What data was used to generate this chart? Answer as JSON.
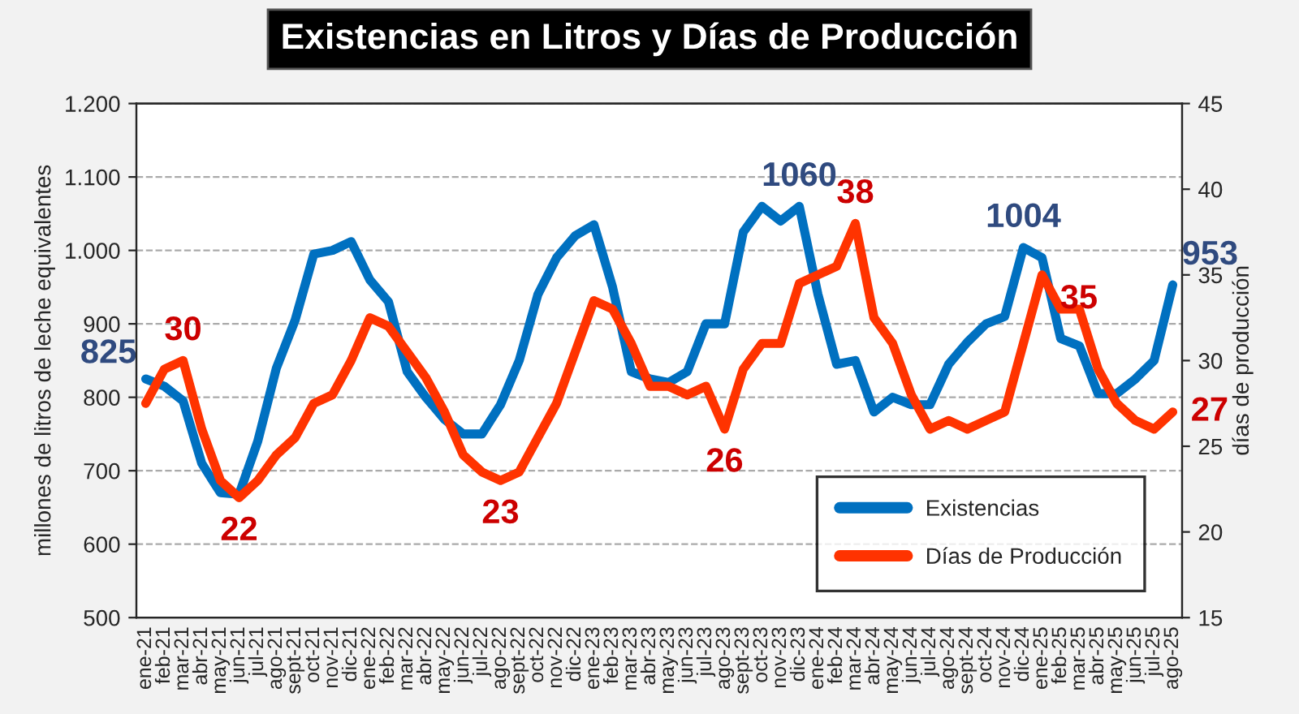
{
  "chart_data": {
    "type": "line",
    "title": "Existencias en Litros y Días de Producción",
    "ylabel": "millones de litros de leche equivalentes",
    "y2label": "días de producción",
    "categories": [
      "ene-21",
      "feb-21",
      "mar-21",
      "abr-21",
      "may-21",
      "jun-21",
      "jul-21",
      "ago-21",
      "sept-21",
      "oct-21",
      "nov-21",
      "dic-21",
      "ene-22",
      "feb-22",
      "mar-22",
      "abr-22",
      "may-22",
      "jun-22",
      "jul-22",
      "ago-22",
      "sept-22",
      "oct-22",
      "nov-22",
      "dic-22",
      "ene-23",
      "feb-23",
      "mar-23",
      "abr-23",
      "may-23",
      "jun-23",
      "jul-23",
      "ago-23",
      "sept-23",
      "oct-23",
      "nov-23",
      "dic-23",
      "ene-24",
      "feb-24",
      "mar-24",
      "abr-24",
      "may-24",
      "jun-24",
      "jul-24",
      "ago-24",
      "sept-24",
      "oct-24",
      "nov-24",
      "dic-24",
      "ene-25",
      "feb-25",
      "mar-25",
      "abr-25",
      "may-25",
      "jun-25",
      "jul-25",
      "ago-25"
    ],
    "series": [
      {
        "name": "Existencias",
        "color": "#0070c0",
        "values": [
          825,
          815,
          795,
          710,
          670,
          668,
          740,
          840,
          905,
          995,
          1000,
          1012,
          960,
          930,
          835,
          800,
          770,
          750,
          750,
          790,
          850,
          940,
          990,
          1020,
          1035,
          950,
          835,
          825,
          820,
          835,
          900,
          900,
          1025,
          1060,
          1040,
          1060,
          940,
          845,
          850,
          780,
          800,
          790,
          790,
          845,
          875,
          900,
          910,
          1004,
          990,
          880,
          870,
          805,
          805,
          825,
          850,
          953
        ],
        "value_labels": [
          "825",
          null,
          null,
          null,
          null,
          null,
          null,
          null,
          null,
          null,
          null,
          null,
          null,
          null,
          null,
          null,
          null,
          null,
          null,
          null,
          null,
          null,
          null,
          null,
          null,
          null,
          null,
          null,
          null,
          null,
          null,
          null,
          null,
          null,
          null,
          "1060",
          null,
          null,
          null,
          null,
          null,
          null,
          null,
          null,
          null,
          null,
          null,
          "1004",
          null,
          null,
          null,
          null,
          null,
          null,
          null,
          "953"
        ]
      },
      {
        "name": "Días de Producción",
        "color": "#ff3300",
        "axis": "y2",
        "values": [
          27.5,
          29.5,
          30,
          26,
          23,
          22,
          23,
          24.5,
          25.5,
          27.5,
          28,
          30,
          32.5,
          32,
          30.5,
          29,
          27,
          24.5,
          23.5,
          23,
          23.5,
          25.5,
          27.5,
          30.5,
          33.5,
          33,
          31,
          28.5,
          28.5,
          28,
          28.5,
          26,
          29.5,
          31,
          31,
          34.5,
          35,
          35.5,
          38,
          32.5,
          31,
          28,
          26,
          26.5,
          26,
          26.5,
          27,
          31,
          35,
          33,
          33,
          29.5,
          27.5,
          26.5,
          26,
          27
        ],
        "value_labels": [
          null,
          null,
          "30",
          null,
          null,
          "22",
          null,
          null,
          null,
          null,
          null,
          null,
          null,
          null,
          null,
          null,
          null,
          null,
          null,
          "23",
          null,
          null,
          null,
          null,
          null,
          null,
          null,
          null,
          null,
          null,
          null,
          "26",
          null,
          null,
          null,
          null,
          null,
          null,
          "38",
          null,
          null,
          null,
          null,
          null,
          null,
          null,
          null,
          null,
          "35",
          null,
          null,
          null,
          null,
          null,
          null,
          "27"
        ]
      }
    ],
    "ylim": [
      500,
      1200
    ],
    "yticks": [
      500,
      600,
      700,
      800,
      900,
      {
        "value": 1000,
        "label": "1.000"
      },
      {
        "value": 1100,
        "label": "1.100"
      },
      {
        "value": 1200,
        "label": "1.200"
      }
    ],
    "y2lim": [
      15,
      45
    ],
    "y2ticks": [
      15,
      20,
      25,
      30,
      35,
      40,
      45
    ],
    "grid": "y",
    "legend": "bottom right",
    "line_style": "solid",
    "marker": "none"
  }
}
